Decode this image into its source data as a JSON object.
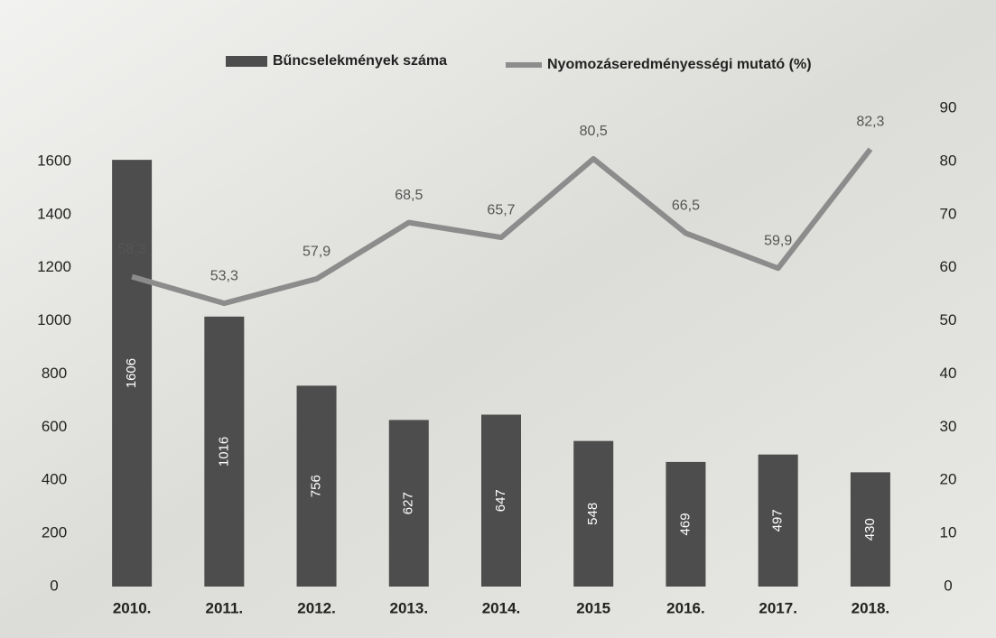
{
  "chart_data": {
    "type": "bar-line",
    "categories": [
      "2010.",
      "2011.",
      "2012.",
      "2013.",
      "2014.",
      "2015",
      "2016.",
      "2017.",
      "2018."
    ],
    "series": [
      {
        "name": "Bűncselekmények száma",
        "color": "#4d4d4d",
        "type": "bar",
        "values": [
          1606,
          1016,
          756,
          627,
          647,
          548,
          469,
          497,
          430
        ]
      },
      {
        "name": "Nyomozáseredményességi mutató (%)",
        "color": "#8c8c8c",
        "type": "line",
        "axis": "y2",
        "values": [
          58.3,
          53.3,
          57.9,
          68.5,
          65.7,
          80.5,
          66.5,
          59.9,
          82.3
        ],
        "value_labels": [
          "58,3",
          "53,3",
          "57,9",
          "68,5",
          "65,7",
          "80,5",
          "66,5",
          "59,9",
          "82,3"
        ]
      }
    ],
    "ylim": [
      0,
      1800
    ],
    "yticks": [
      0,
      200,
      400,
      600,
      800,
      1000,
      1200,
      1400,
      1600
    ],
    "y2lim": [
      0,
      90
    ],
    "y2ticks": [
      0,
      10,
      20,
      30,
      40,
      50,
      60,
      70,
      80,
      90
    ]
  }
}
